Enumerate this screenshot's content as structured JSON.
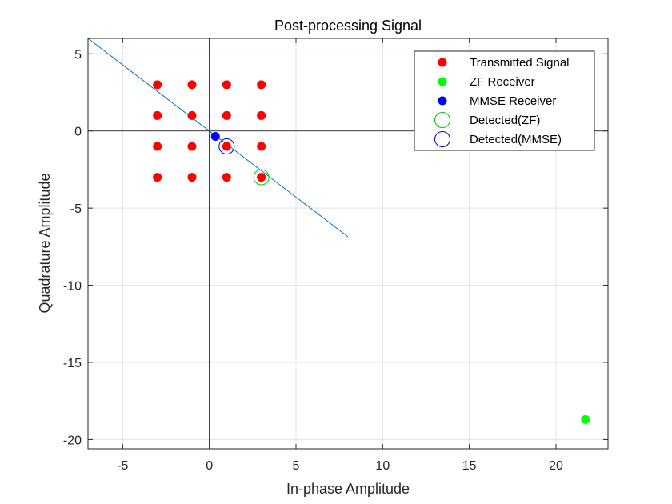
{
  "chart_data": {
    "type": "scatter",
    "title": "Post-processing Signal",
    "xlabel": "In-phase Amplitude",
    "ylabel": "Quadrature Amplitude",
    "xlim": [
      -7,
      23
    ],
    "ylim": [
      -20.6,
      6
    ],
    "xticks": [
      -5,
      0,
      5,
      10,
      15,
      20
    ],
    "yticks": [
      -20,
      -15,
      -10,
      -5,
      0,
      5
    ],
    "grid": true,
    "legend_position": "top-right",
    "zero_lines": true,
    "series": [
      {
        "name": "Transmitted Signal",
        "marker": "filled-dot",
        "color": "#ff0000",
        "points": [
          [
            -3,
            3
          ],
          [
            -1,
            3
          ],
          [
            1,
            3
          ],
          [
            3,
            3
          ],
          [
            -3,
            1
          ],
          [
            -1,
            1
          ],
          [
            1,
            1
          ],
          [
            3,
            1
          ],
          [
            -3,
            -1
          ],
          [
            -1,
            -1
          ],
          [
            1,
            -1
          ],
          [
            3,
            -1
          ],
          [
            -3,
            -3
          ],
          [
            -1,
            -3
          ],
          [
            1,
            -3
          ],
          [
            3,
            -3
          ]
        ]
      },
      {
        "name": "ZF Receiver",
        "marker": "filled-dot",
        "color": "#00ff00",
        "points": [
          [
            21.7,
            -18.7
          ]
        ]
      },
      {
        "name": "MMSE Receiver",
        "marker": "filled-dot",
        "color": "#0000ff",
        "points": [
          [
            0.35,
            -0.35
          ]
        ]
      },
      {
        "name": "Detected(ZF)",
        "marker": "open-circle",
        "color": "#00cc00",
        "points": [
          [
            3,
            -3
          ]
        ]
      },
      {
        "name": "Detected(MMSE)",
        "marker": "open-circle",
        "color": "#0000cc",
        "points": [
          [
            1,
            -1
          ]
        ]
      }
    ],
    "line": {
      "color": "#0072bd",
      "points": [
        [
          -7,
          6
        ],
        [
          8,
          -6.86
        ]
      ]
    }
  }
}
